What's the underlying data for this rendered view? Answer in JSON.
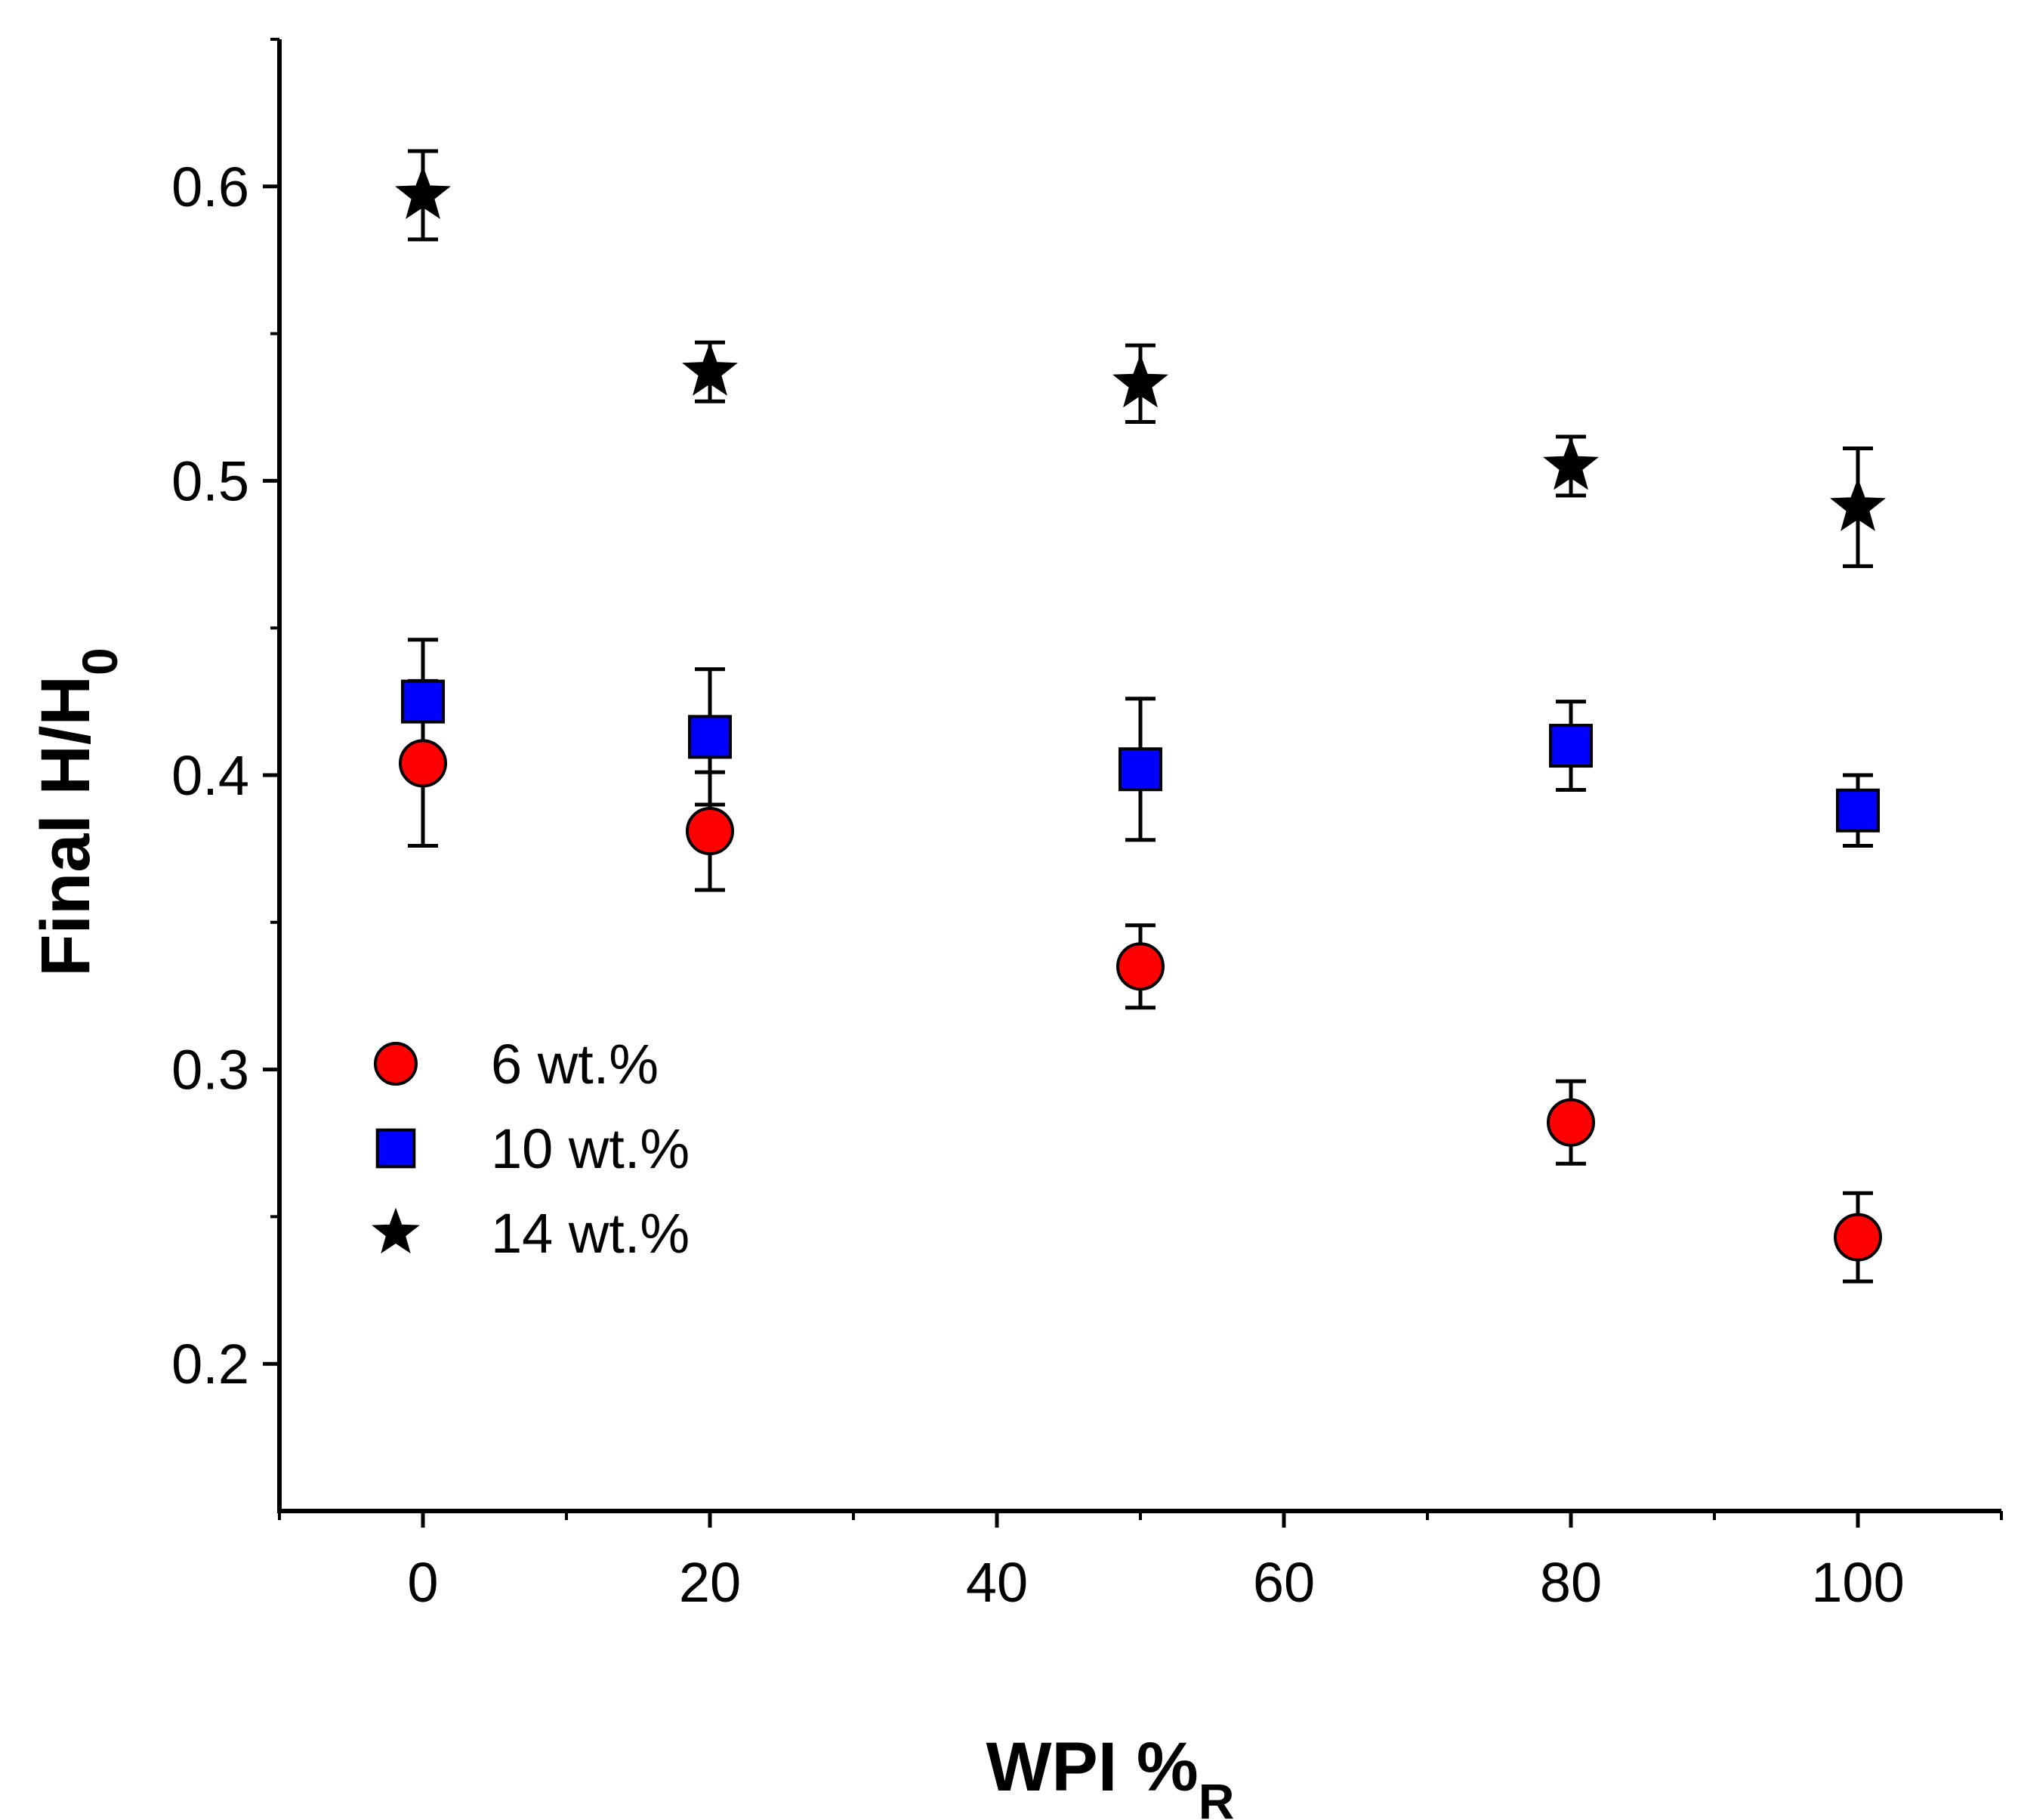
{
  "chart_data": {
    "type": "scatter",
    "title": "",
    "xlabel": "WPI %",
    "xlabel_sub": "R",
    "ylabel": "Final H/H",
    "ylabel_sub": "0",
    "xlim": [
      -10,
      110
    ],
    "ylim": [
      0.15,
      0.65
    ],
    "xticks": [
      0,
      20,
      40,
      60,
      80,
      100
    ],
    "xtick_labels": [
      "0",
      "20",
      "40",
      "60",
      "80",
      "100"
    ],
    "xminor": [
      -10,
      10,
      30,
      50,
      70,
      90,
      110
    ],
    "yticks": [
      0.2,
      0.3,
      0.4,
      0.5,
      0.6
    ],
    "ytick_labels": [
      "0.2",
      "0.3",
      "0.4",
      "0.5",
      "0.6"
    ],
    "yminor": [
      0.25,
      0.35,
      0.45,
      0.55,
      0.65
    ],
    "grid": false,
    "legend_position": "lower-left",
    "x": [
      0,
      20,
      50,
      80,
      100
    ],
    "series": [
      {
        "name": "6 wt.%",
        "marker": "circle",
        "color": "#ff0000",
        "values": [
          0.404,
          0.381,
          0.335,
          0.282,
          0.243
        ],
        "errors": [
          0.028,
          0.02,
          0.014,
          0.014,
          0.015
        ]
      },
      {
        "name": "10 wt.%",
        "marker": "square",
        "color": "#0000ff",
        "values": [
          0.425,
          0.413,
          0.402,
          0.41,
          0.388
        ],
        "errors": [
          0.021,
          0.023,
          0.024,
          0.015,
          0.012
        ]
      },
      {
        "name": "14 wt.%",
        "marker": "star",
        "color": "#000000",
        "values": [
          0.597,
          0.537,
          0.533,
          0.505,
          0.491
        ],
        "errors": [
          0.015,
          0.01,
          0.013,
          0.01,
          0.02
        ]
      }
    ]
  }
}
